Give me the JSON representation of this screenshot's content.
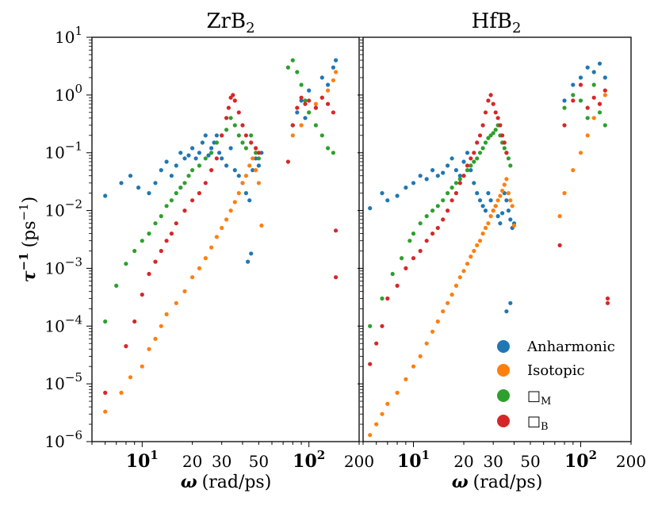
{
  "chart_data": [
    {
      "type": "scatter",
      "title_base": "ZrB",
      "title_sub": "2",
      "xscale": "log",
      "yscale": "log",
      "xlim": [
        5,
        200
      ],
      "ylim": [
        1e-06,
        10
      ],
      "xlabel_sym": "ω",
      "xlabel_unit": "(rad/ps)",
      "ylabel_sym": "τ",
      "ylabel_sup": "−1",
      "ylabel_unit_pre": "(ps",
      "ylabel_unit_sup": "−1",
      "ylabel_unit_post": ")",
      "xticks": [
        {
          "value": 10,
          "base": "10",
          "exp": "1",
          "bold": true
        },
        {
          "value": 20,
          "label": "20"
        },
        {
          "value": 30,
          "label": "30"
        },
        {
          "value": 50,
          "label": "50"
        },
        {
          "value": 100,
          "base": "10",
          "exp": "2",
          "bold": true
        },
        {
          "value": 200,
          "label": "200"
        }
      ],
      "yticks": [
        {
          "value": 1e-06,
          "base": "10",
          "exp": "−6"
        },
        {
          "value": 1e-05,
          "base": "10",
          "exp": "−5"
        },
        {
          "value": 0.0001,
          "base": "10",
          "exp": "−4"
        },
        {
          "value": 0.001,
          "base": "10",
          "exp": "−3"
        },
        {
          "value": 0.01,
          "base": "10",
          "exp": "−2"
        },
        {
          "value": 0.1,
          "base": "10",
          "exp": "−1"
        },
        {
          "value": 1,
          "base": "10",
          "exp": "0"
        },
        {
          "value": 10,
          "base": "10",
          "exp": "1"
        }
      ],
      "series": [
        {
          "name": "Anharmonic",
          "color": "#1f77b4",
          "x": [
            6,
            7.5,
            8.5,
            9.5,
            11,
            12,
            13,
            14,
            15,
            16,
            17,
            18,
            19,
            20,
            21,
            22,
            23,
            24,
            25,
            26,
            27,
            28,
            29,
            30,
            32,
            34,
            36,
            38,
            40,
            42,
            44,
            46,
            48,
            50,
            52,
            43,
            45,
            80,
            85,
            90,
            95,
            100,
            110,
            120,
            130,
            140,
            145
          ],
          "y": [
            0.018,
            0.03,
            0.04,
            0.025,
            0.02,
            0.03,
            0.05,
            0.07,
            0.04,
            0.06,
            0.1,
            0.08,
            0.09,
            0.12,
            0.08,
            0.1,
            0.15,
            0.2,
            0.09,
            0.12,
            0.15,
            0.2,
            0.1,
            0.08,
            0.06,
            0.12,
            0.05,
            0.04,
            0.03,
            0.02,
            0.015,
            0.05,
            0.08,
            0.06,
            0.1,
            0.0013,
            0.0018,
            0.3,
            0.5,
            0.8,
            0.4,
            1.2,
            0.6,
            2,
            1.5,
            3,
            4
          ]
        },
        {
          "name": "Isotopic",
          "color": "#ff7f0e",
          "x": [
            6,
            7.5,
            8.5,
            10,
            11,
            12,
            13,
            14,
            16,
            18,
            20,
            22,
            24,
            26,
            28,
            30,
            32,
            34,
            36,
            38,
            40,
            42,
            44,
            46,
            48,
            50,
            52,
            80,
            90,
            100,
            110,
            120,
            130,
            140,
            145
          ],
          "y": [
            3.3e-06,
            7e-06,
            1.3e-05,
            2e-05,
            4e-05,
            6e-05,
            0.0001,
            0.00016,
            0.00025,
            0.0004,
            0.0007,
            0.001,
            0.0015,
            0.0023,
            0.0035,
            0.005,
            0.007,
            0.01,
            0.014,
            0.02,
            0.03,
            0.04,
            0.06,
            0.08,
            0.05,
            0.03,
            0.0055,
            0.2,
            0.3,
            0.5,
            0.7,
            0.9,
            1.2,
            1.8,
            2.5
          ]
        },
        {
          "name": "□",
          "sub": "M",
          "color": "#2ca02c",
          "x": [
            6,
            7,
            8,
            9,
            10,
            11,
            12,
            13,
            14,
            15,
            16,
            17,
            18,
            19,
            20,
            22,
            24,
            26,
            28,
            30,
            32,
            34,
            36,
            38,
            40,
            42,
            45,
            48,
            50,
            75,
            80,
            85,
            90,
            95,
            100,
            110,
            120,
            130,
            140
          ],
          "y": [
            0.00012,
            0.0005,
            0.0012,
            0.002,
            0.003,
            0.004,
            0.006,
            0.008,
            0.012,
            0.015,
            0.02,
            0.025,
            0.03,
            0.04,
            0.05,
            0.06,
            0.08,
            0.1,
            0.15,
            0.2,
            0.25,
            0.4,
            0.3,
            0.2,
            0.15,
            0.12,
            0.2,
            0.1,
            0.08,
            3,
            4,
            2.5,
            1.5,
            0.8,
            0.5,
            0.3,
            0.2,
            0.12,
            0.1
          ]
        },
        {
          "name": "□",
          "sub": "B",
          "color": "#d62728",
          "x": [
            6,
            8,
            9,
            10,
            11,
            12,
            13,
            14,
            15,
            16,
            18,
            20,
            22,
            24,
            26,
            28,
            30,
            32,
            33,
            34,
            35,
            36,
            38,
            40,
            42,
            45,
            48,
            50,
            75,
            80,
            85,
            90,
            95,
            100,
            110,
            120,
            130,
            140,
            145,
            145
          ],
          "y": [
            7e-06,
            4.5e-05,
            0.00012,
            0.00035,
            0.0008,
            0.0013,
            0.002,
            0.003,
            0.004,
            0.006,
            0.01,
            0.015,
            0.02,
            0.03,
            0.05,
            0.08,
            0.2,
            0.4,
            0.6,
            0.9,
            1,
            0.8,
            0.5,
            0.3,
            0.2,
            0.15,
            0.12,
            0.1,
            0.07,
            0.3,
            0.6,
            0.9,
            0.7,
            0.8,
            0.6,
            0.9,
            0.7,
            0.5,
            0.0045,
            0.0007
          ]
        }
      ]
    },
    {
      "type": "scatter",
      "title_base": "HfB",
      "title_sub": "2",
      "xscale": "log",
      "yscale": "log",
      "xlim": [
        5,
        200
      ],
      "ylim": [
        1e-06,
        10
      ],
      "xlabel_sym": "ω",
      "xlabel_unit": "(rad/ps)",
      "xticks": [
        {
          "value": 10,
          "base": "10",
          "exp": "1",
          "bold": true
        },
        {
          "value": 20,
          "label": "20"
        },
        {
          "value": 30,
          "label": "30"
        },
        {
          "value": 50,
          "label": "50"
        },
        {
          "value": 100,
          "base": "10",
          "exp": "2",
          "bold": true
        },
        {
          "value": 200,
          "label": "200"
        }
      ],
      "series": [
        {
          "name": "Anharmonic",
          "color": "#1f77b4",
          "x": [
            5.5,
            6.5,
            7,
            8,
            9,
            10,
            11,
            12,
            13,
            14,
            15,
            16,
            17,
            18,
            19,
            20,
            21,
            22,
            23,
            24,
            25,
            26,
            27,
            28,
            29,
            30,
            31,
            32,
            33,
            34,
            35,
            36,
            37,
            38,
            39,
            40,
            36,
            38,
            80,
            90,
            100,
            110,
            120,
            130,
            140
          ],
          "y": [
            0.011,
            0.02,
            0.015,
            0.018,
            0.025,
            0.03,
            0.04,
            0.035,
            0.05,
            0.04,
            0.045,
            0.06,
            0.08,
            0.05,
            0.04,
            0.07,
            0.1,
            0.05,
            0.03,
            0.02,
            0.015,
            0.012,
            0.01,
            0.02,
            0.015,
            0.01,
            0.012,
            0.008,
            0.006,
            0.009,
            0.02,
            0.015,
            0.01,
            0.007,
            0.005,
            0.006,
            0.00018,
            0.00025,
            0.8,
            1.5,
            2,
            3,
            2.5,
            3.5,
            2
          ]
        },
        {
          "name": "Isotopic",
          "color": "#ff7f0e",
          "x": [
            5.5,
            6,
            6.5,
            7,
            8,
            9,
            10,
            11,
            12,
            13,
            14,
            15,
            16,
            17,
            18,
            19,
            20,
            21,
            22,
            23,
            24,
            25,
            26,
            27,
            28,
            29,
            30,
            31,
            32,
            33,
            34,
            35,
            36,
            37,
            38,
            39,
            40,
            75,
            80,
            90,
            100,
            110,
            120,
            130,
            140
          ],
          "y": [
            1.3e-06,
            2e-06,
            3e-06,
            4.5e-06,
            7e-06,
            1.2e-05,
            2e-05,
            3e-05,
            5e-05,
            8e-05,
            0.00012,
            0.00018,
            0.00025,
            0.00035,
            0.0005,
            0.0007,
            0.0009,
            0.0012,
            0.0016,
            0.002,
            0.0025,
            0.003,
            0.004,
            0.005,
            0.006,
            0.008,
            0.01,
            0.012,
            0.015,
            0.018,
            0.022,
            0.028,
            0.035,
            0.02,
            0.015,
            0.012,
            0.0055,
            0.008,
            0.02,
            0.05,
            0.1,
            0.2,
            0.4,
            0.7,
            1
          ]
        },
        {
          "name": "□",
          "sub": "M",
          "color": "#2ca02c",
          "x": [
            5.5,
            6.5,
            7.5,
            8.5,
            9.5,
            10,
            11,
            12,
            13,
            14,
            15,
            16,
            17,
            18,
            19,
            20,
            21,
            22,
            23,
            24,
            25,
            26,
            27,
            28,
            29,
            30,
            31,
            32,
            33,
            34,
            35,
            36,
            37,
            38,
            80,
            90,
            100,
            110,
            120,
            130,
            140
          ],
          "y": [
            0.0001,
            0.0003,
            0.0008,
            0.0015,
            0.003,
            0.004,
            0.006,
            0.008,
            0.01,
            0.012,
            0.015,
            0.02,
            0.025,
            0.03,
            0.035,
            0.04,
            0.05,
            0.06,
            0.07,
            0.08,
            0.1,
            0.12,
            0.15,
            0.18,
            0.2,
            0.22,
            0.25,
            0.3,
            0.2,
            0.15,
            0.12,
            0.1,
            0.08,
            0.06,
            0.6,
            1,
            0.8,
            0.4,
            1.5,
            0.5,
            0.3
          ]
        },
        {
          "name": "□",
          "sub": "B",
          "color": "#d62728",
          "x": [
            5.5,
            6,
            6.5,
            7,
            8,
            9,
            10,
            11,
            12,
            13,
            14,
            15,
            16,
            17,
            18,
            19,
            20,
            21,
            22,
            23,
            24,
            25,
            26,
            27,
            28,
            29,
            30,
            31,
            32,
            33,
            34,
            35,
            36,
            75,
            80,
            90,
            100,
            110,
            120,
            130,
            140,
            145,
            145
          ],
          "y": [
            2.2e-05,
            5e-05,
            0.0001,
            0.0003,
            0.0005,
            0.001,
            0.0015,
            0.002,
            0.003,
            0.004,
            0.005,
            0.007,
            0.01,
            0.015,
            0.02,
            0.03,
            0.04,
            0.06,
            0.08,
            0.1,
            0.15,
            0.2,
            0.3,
            0.5,
            0.8,
            1,
            0.7,
            0.5,
            0.4,
            0.3,
            0.2,
            0.15,
            0.1,
            0.0025,
            0.3,
            0.8,
            1.5,
            0.6,
            0.9,
            0.7,
            1.2,
            0.0003,
            0.00025
          ]
        }
      ]
    }
  ],
  "legend": {
    "placement": "lower-right of right panel",
    "entries": [
      {
        "label": "Anharmonic",
        "color": "#1f77b4"
      },
      {
        "label": "Isotopic",
        "color": "#ff7f0e"
      },
      {
        "label": "□",
        "sub": "M",
        "color": "#2ca02c"
      },
      {
        "label": "□",
        "sub": "B",
        "color": "#d62728"
      }
    ]
  }
}
